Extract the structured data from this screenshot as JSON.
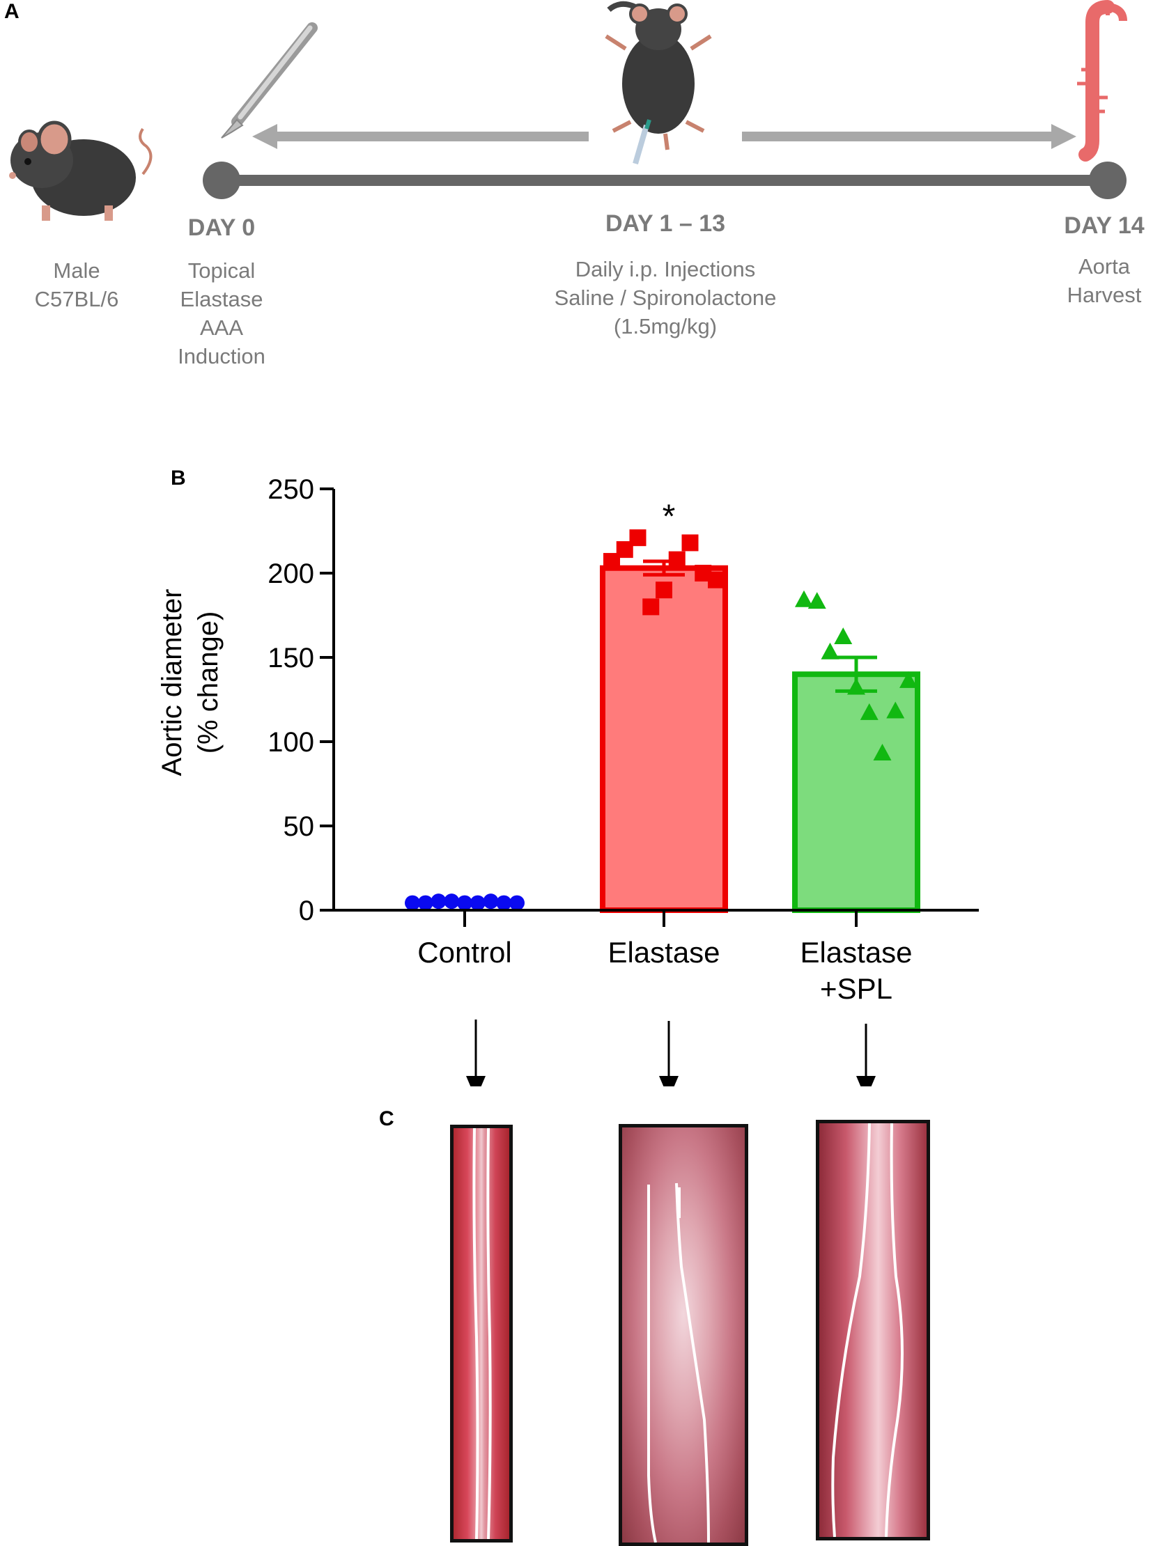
{
  "panels": {
    "a": "A",
    "b": "B",
    "c": "C"
  },
  "timeline": {
    "mouse_label": [
      "Male",
      "C57BL/6"
    ],
    "steps": [
      {
        "day": "DAY 0",
        "desc": [
          "Topical",
          "Elastase",
          "AAA",
          "Induction"
        ]
      },
      {
        "day": "DAY 1 – 13",
        "desc": [
          "Daily i.p. Injections",
          "Saline / Spironolactone",
          "(1.5mg/kg)"
        ]
      },
      {
        "day": "DAY 14",
        "desc": [
          "Aorta",
          "Harvest"
        ]
      }
    ],
    "icons": [
      "mouse-icon",
      "scalpel-icon",
      "mouse-injection-icon",
      "aorta-icon"
    ],
    "colors": {
      "line": "#666666",
      "arrow": "#a8a8a8",
      "text": "#7a7a7a"
    }
  },
  "chart_data": {
    "type": "bar",
    "ylabel": [
      "Aortic diameter",
      "(% change)"
    ],
    "ylim": [
      0,
      250
    ],
    "yticks": [
      0,
      50,
      100,
      150,
      200,
      250
    ],
    "categories": [
      "Control",
      "Elastase",
      "Elastase+SPL"
    ],
    "category_labels": [
      [
        "Control"
      ],
      [
        "Elastase"
      ],
      [
        "Elastase",
        "+SPL"
      ]
    ],
    "means": [
      1,
      203,
      140
    ],
    "sem": [
      0.5,
      4,
      10
    ],
    "points": [
      [
        1,
        1,
        2,
        2,
        1,
        1,
        2,
        1,
        1
      ],
      [
        207,
        214,
        221,
        180,
        190,
        208,
        218,
        200,
        196
      ],
      [
        184,
        183,
        153,
        162,
        132,
        117,
        93,
        118,
        136
      ]
    ],
    "markers": [
      "circle",
      "square",
      "triangle"
    ],
    "colors": {
      "fill": [
        "#0000ff",
        "#ff7b7b",
        "#7ddc7d"
      ],
      "stroke": [
        "#0000ff",
        "#ee0000",
        "#11b811"
      ],
      "points": [
        "#0a0af0",
        "#ee0000",
        "#11b811"
      ]
    },
    "annotations": [
      {
        "category": "Elastase",
        "text": "*"
      }
    ]
  },
  "photos": [
    {
      "label": "Control"
    },
    {
      "label": "Elastase"
    },
    {
      "label": "Elastase+SPL"
    }
  ]
}
